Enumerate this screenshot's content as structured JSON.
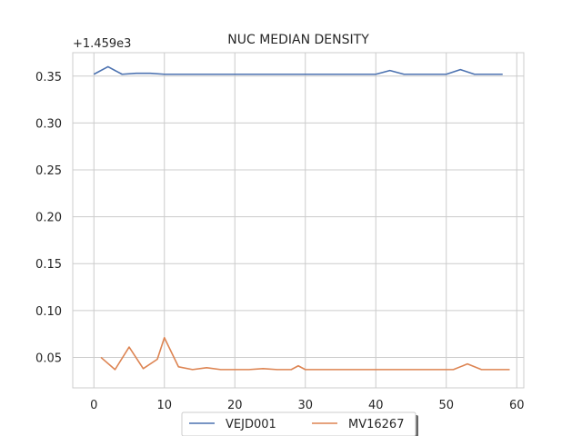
{
  "chart_data": {
    "type": "line",
    "title": "NUC MEDIAN DENSITY",
    "offset_text": "+1.459e3",
    "xlabel": "",
    "ylabel": "",
    "xlim": [
      -3,
      61
    ],
    "ylim": [
      0.0175,
      0.375
    ],
    "xticks": [
      0,
      10,
      20,
      30,
      40,
      50,
      60
    ],
    "yticks": [
      0.05,
      0.1,
      0.15,
      0.2,
      0.25,
      0.3,
      0.35
    ],
    "ytick_labels": [
      "0.05",
      "0.10",
      "0.15",
      "0.20",
      "0.25",
      "0.30",
      "0.35"
    ],
    "grid": true,
    "legend": "bottom-center",
    "series": [
      {
        "name": "VEJD001",
        "color": "#4c72b0",
        "x": [
          0,
          2,
          4,
          6,
          8,
          10,
          12,
          14,
          16,
          18,
          20,
          22,
          24,
          26,
          28,
          30,
          32,
          34,
          36,
          38,
          40,
          42,
          44,
          46,
          48,
          50,
          52,
          54,
          56,
          58
        ],
        "y": [
          0.352,
          0.36,
          0.352,
          0.353,
          0.353,
          0.352,
          0.352,
          0.352,
          0.352,
          0.352,
          0.352,
          0.352,
          0.352,
          0.352,
          0.352,
          0.352,
          0.352,
          0.352,
          0.352,
          0.352,
          0.352,
          0.356,
          0.352,
          0.352,
          0.352,
          0.352,
          0.357,
          0.352,
          0.352,
          0.352
        ]
      },
      {
        "name": "MV16267",
        "color": "#dd8452",
        "x": [
          1,
          3,
          5,
          7,
          9,
          10,
          12,
          14,
          16,
          18,
          20,
          22,
          24,
          26,
          28,
          29,
          30,
          32,
          34,
          36,
          38,
          40,
          42,
          44,
          46,
          48,
          50,
          51,
          53,
          55,
          57,
          59
        ],
        "y": [
          0.05,
          0.037,
          0.061,
          0.038,
          0.048,
          0.071,
          0.04,
          0.037,
          0.039,
          0.037,
          0.037,
          0.037,
          0.038,
          0.037,
          0.037,
          0.041,
          0.037,
          0.037,
          0.037,
          0.037,
          0.037,
          0.037,
          0.037,
          0.037,
          0.037,
          0.037,
          0.037,
          0.037,
          0.043,
          0.037,
          0.037,
          0.037
        ]
      }
    ]
  }
}
